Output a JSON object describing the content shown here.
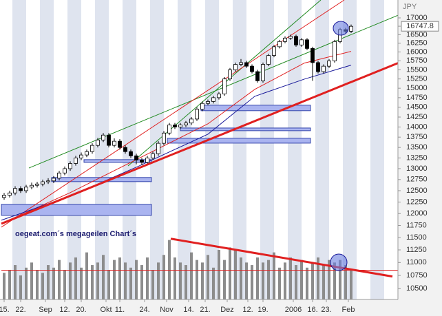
{
  "chart_data": {
    "type": "candlestick",
    "unit_label": "JPY",
    "annotation": "oegeat.com´s megageilen Chart´s",
    "log_scale": true,
    "xlim": [
      0,
      144
    ],
    "ylim": [
      10300,
      17550
    ],
    "yticks": [
      10500,
      10750,
      11000,
      11250,
      11500,
      11750,
      12000,
      12250,
      12500,
      12750,
      13000,
      13250,
      13500,
      13750,
      14000,
      14250,
      14500,
      14750,
      15000,
      15250,
      15500,
      15750,
      16000,
      16250,
      16500,
      16750,
      17000
    ],
    "xticks": [
      {
        "value": 1,
        "label": "15."
      },
      {
        "value": 7,
        "label": "22."
      },
      {
        "value": 16,
        "label": "Sep"
      },
      {
        "value": 23,
        "label": "12."
      },
      {
        "value": 29,
        "label": "20."
      },
      {
        "value": 38,
        "label": "Okt"
      },
      {
        "value": 43,
        "label": "11."
      },
      {
        "value": 52,
        "label": "24."
      },
      {
        "value": 60,
        "label": "Nov"
      },
      {
        "value": 68,
        "label": "14."
      },
      {
        "value": 74,
        "label": "21."
      },
      {
        "value": 82,
        "label": "Dez"
      },
      {
        "value": 89.5,
        "label": "12."
      },
      {
        "value": 95,
        "label": "19."
      },
      {
        "value": 106,
        "label": "2006"
      },
      {
        "value": 113,
        "label": "16."
      },
      {
        "value": 118,
        "label": "23."
      },
      {
        "value": 126,
        "label": "Feb"
      }
    ],
    "up_color": "#ffffff",
    "down_color": "#000000",
    "candles": {
      "x": [
        1,
        3,
        5,
        7,
        9,
        11,
        13,
        15,
        17,
        19,
        21,
        23,
        25,
        27,
        29,
        31,
        33,
        35,
        37,
        39,
        41,
        43,
        45,
        47,
        49,
        51,
        53,
        55,
        57,
        59,
        61,
        63,
        65,
        67,
        69,
        71,
        73,
        75,
        77,
        79,
        81,
        83,
        85,
        87,
        89,
        91,
        93,
        95,
        97,
        99,
        101,
        103,
        105,
        107,
        109,
        111,
        113,
        115,
        117,
        119,
        121,
        123,
        125,
        127
      ],
      "open": [
        12350,
        12400,
        12450,
        12550,
        12500,
        12580,
        12620,
        12650,
        12700,
        12720,
        12780,
        12900,
        13000,
        13120,
        13250,
        13320,
        13400,
        13550,
        13680,
        13800,
        13550,
        13650,
        13500,
        13400,
        13300,
        13200,
        13150,
        13250,
        13350,
        13600,
        13850,
        14050,
        14000,
        14050,
        14100,
        14200,
        14450,
        14600,
        14650,
        14750,
        14850,
        15250,
        15500,
        15650,
        15700,
        15600,
        15450,
        15200,
        15650,
        15900,
        16150,
        16300,
        16400,
        16450,
        16200,
        16350,
        16100,
        15700,
        15450,
        15600,
        15750,
        16300,
        16650,
        16600
      ],
      "high": [
        12450,
        12500,
        12600,
        12600,
        12630,
        12680,
        12700,
        12750,
        12780,
        12830,
        12950,
        13050,
        13170,
        13300,
        13380,
        13450,
        13600,
        13730,
        13850,
        13850,
        13720,
        13700,
        13550,
        13450,
        13350,
        13250,
        13300,
        13400,
        13650,
        13900,
        14100,
        14100,
        14100,
        14150,
        14250,
        14500,
        14650,
        14700,
        14800,
        14900,
        15300,
        15550,
        15700,
        15800,
        15750,
        15650,
        15500,
        15700,
        15950,
        16200,
        16350,
        16450,
        16500,
        16500,
        16400,
        16400,
        16150,
        15750,
        15650,
        15800,
        16350,
        16700,
        16700,
        16800
      ],
      "low": [
        12300,
        12350,
        12400,
        12450,
        12450,
        12530,
        12570,
        12600,
        12650,
        12670,
        12730,
        12850,
        12950,
        13070,
        13200,
        13270,
        13350,
        13500,
        13630,
        13500,
        13500,
        13450,
        13350,
        13250,
        13100,
        13080,
        13100,
        13200,
        13300,
        13550,
        13800,
        13950,
        13950,
        14000,
        14050,
        14150,
        14400,
        14550,
        14600,
        14700,
        14800,
        15200,
        15450,
        15600,
        15550,
        15400,
        15150,
        15150,
        15600,
        15850,
        16100,
        16250,
        16350,
        16150,
        16150,
        16050,
        15200,
        15400,
        15400,
        15550,
        15700,
        16250,
        16550,
        16550
      ],
      "close": [
        12400,
        12450,
        12550,
        12500,
        12580,
        12620,
        12650,
        12700,
        12720,
        12780,
        12900,
        13000,
        13120,
        13250,
        13320,
        13400,
        13550,
        13680,
        13800,
        13550,
        13650,
        13500,
        13400,
        13300,
        13200,
        13150,
        13250,
        13350,
        13600,
        13850,
        14050,
        14000,
        14050,
        14100,
        14200,
        14450,
        14600,
        14650,
        14750,
        14850,
        15250,
        15500,
        15650,
        15700,
        15600,
        15450,
        15200,
        15650,
        15900,
        16150,
        16300,
        16400,
        16450,
        16200,
        16350,
        16100,
        15700,
        15450,
        15600,
        15750,
        16300,
        16650,
        16600,
        16747.8
      ]
    },
    "volume": {
      "color": "#8c8c8c",
      "x": [
        1,
        3,
        5,
        7,
        9,
        11,
        13,
        15,
        17,
        19,
        21,
        23,
        25,
        27,
        29,
        31,
        33,
        35,
        37,
        39,
        41,
        43,
        45,
        47,
        49,
        51,
        53,
        55,
        57,
        59,
        61,
        63,
        65,
        67,
        69,
        71,
        73,
        75,
        77,
        79,
        81,
        83,
        85,
        87,
        89,
        91,
        93,
        95,
        97,
        99,
        101,
        103,
        105,
        107,
        109,
        111,
        113,
        115,
        117,
        119,
        121,
        123,
        125,
        127
      ],
      "values": [
        10800,
        10850,
        10950,
        10750,
        10900,
        11000,
        10850,
        10800,
        10950,
        10900,
        11050,
        10850,
        11000,
        11100,
        10900,
        11200,
        10950,
        11000,
        11150,
        10850,
        11050,
        11100,
        11000,
        10900,
        11050,
        10950,
        11100,
        10850,
        11000,
        11150,
        11450,
        11100,
        11000,
        10950,
        11200,
        11050,
        11000,
        11150,
        10900,
        11250,
        11050,
        11300,
        11250,
        11100,
        11000,
        10950,
        11100,
        11000,
        11050,
        11200,
        10900,
        11000,
        11100,
        10950,
        11050,
        10900,
        11000,
        11100,
        10950,
        11050,
        11000,
        11050,
        10950,
        10850
      ]
    },
    "lines": [
      {
        "color": "#228b22",
        "width": 1,
        "x": [
          10,
          144
        ],
        "values": [
          13015,
          17080
        ]
      },
      {
        "color": "#228b22",
        "width": 1,
        "x": [
          46,
          116
        ],
        "values": [
          13063,
          17550
        ]
      },
      {
        "color": "#e02020",
        "width": 1,
        "x": [
          0,
          124.5
        ],
        "values": [
          11715,
          17550
        ]
      },
      {
        "color": "#e02020",
        "width": 1,
        "x": [
          0,
          25,
          50,
          75,
          92,
          110,
          127
        ],
        "values": [
          11787,
          12456,
          13243,
          14079,
          14969,
          15687,
          16016
        ]
      },
      {
        "color": "#1a1a9a",
        "width": 1,
        "x": [
          0,
          25,
          50,
          75,
          92,
          110,
          127
        ],
        "values": [
          11860,
          12380,
          13063,
          13822,
          14786,
          15245,
          15629
        ]
      },
      {
        "color": "#e02020",
        "width": 3,
        "x": [
          0,
          144
        ],
        "values": [
          11787,
          15687
        ]
      },
      {
        "color": "#e02020",
        "width": 3,
        "x": [
          61.5,
          142
        ],
        "values": [
          11476,
          10730
        ]
      },
      {
        "color": "#e02020",
        "width": 1,
        "x": [
          0,
          144
        ],
        "values": [
          10850,
          10850
        ]
      }
    ],
    "zones": [
      {
        "x": [
          0,
          54.5
        ],
        "y": [
          11963,
          12200
        ]
      },
      {
        "x": [
          18.25,
          54.5
        ],
        "y": [
          12703,
          12797
        ]
      },
      {
        "x": [
          30,
          54.5
        ],
        "y": [
          13146,
          13210
        ]
      },
      {
        "x": [
          60.25,
          112.25
        ],
        "y": [
          13604,
          13722
        ]
      },
      {
        "x": [
          65,
          112.25
        ],
        "y": [
          13908,
          13975
        ]
      },
      {
        "x": [
          72.5,
          112.25
        ],
        "y": [
          14412,
          14554
        ]
      }
    ],
    "zone_color": "#aab4f0"
  }
}
